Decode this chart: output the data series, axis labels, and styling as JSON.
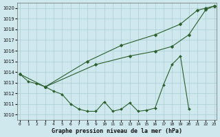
{
  "bg_color": "#cee8ee",
  "grid_color": "#a8cdd4",
  "line_color": "#2a5e2a",
  "xlabel": "Graphe pression niveau de la mer (hPa)",
  "ylim": [
    1009.5,
    1020.5
  ],
  "xlim": [
    -0.3,
    23.3
  ],
  "yticks": [
    1010,
    1011,
    1012,
    1013,
    1014,
    1015,
    1016,
    1017,
    1018,
    1019,
    1020
  ],
  "xticks": [
    0,
    1,
    2,
    3,
    4,
    5,
    6,
    7,
    8,
    9,
    10,
    11,
    12,
    13,
    14,
    15,
    16,
    17,
    18,
    19,
    20,
    21,
    22,
    23
  ],
  "line1_bottom": {
    "x": [
      0,
      1,
      2,
      3,
      4,
      5,
      6,
      7,
      8,
      9,
      10,
      11,
      12,
      13,
      14,
      15,
      16,
      17,
      18,
      19,
      20
    ],
    "y": [
      1013.8,
      1013.1,
      1012.9,
      1012.6,
      1012.2,
      1011.9,
      1011.0,
      1010.5,
      1010.3,
      1010.3,
      1011.2,
      1010.3,
      1010.5,
      1011.1,
      1010.3,
      1010.4,
      1010.6,
      1012.8,
      1014.7,
      1015.5,
      1010.5
    ]
  },
  "line2_top": {
    "x": [
      3,
      8,
      12,
      16,
      19,
      21,
      22,
      23
    ],
    "y": [
      1012.6,
      1015.0,
      1016.5,
      1017.5,
      1018.5,
      1019.8,
      1020.0,
      1020.2
    ]
  },
  "line3_mid": {
    "x": [
      0,
      3,
      9,
      13,
      16,
      18,
      20,
      22,
      23
    ],
    "y": [
      1013.8,
      1012.6,
      1014.7,
      1015.5,
      1015.95,
      1016.4,
      1017.5,
      1019.85,
      1020.2
    ]
  }
}
